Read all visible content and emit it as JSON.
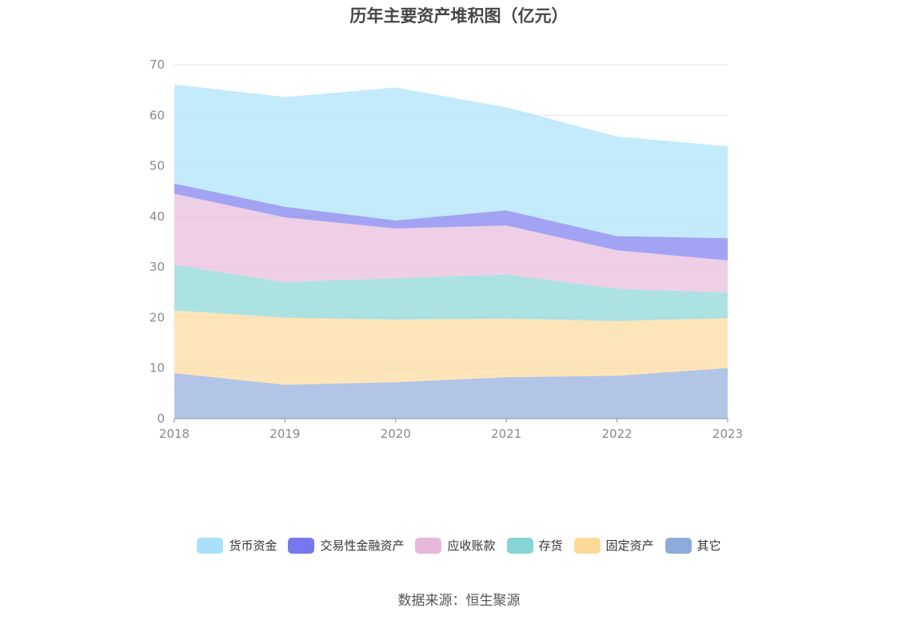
{
  "chart_data": {
    "type": "area",
    "title": "历年主要资产堆积图（亿元）",
    "stacked": true,
    "x": [
      "2018",
      "2019",
      "2020",
      "2021",
      "2022",
      "2023"
    ],
    "ylim": [
      0,
      70
    ],
    "yticks": [
      0,
      10,
      20,
      30,
      40,
      50,
      60,
      70
    ],
    "grid": true,
    "legend_position": "bottom",
    "series": [
      {
        "name": "其它",
        "color": "#8eaadb",
        "values": [
          9.0,
          6.7,
          7.2,
          8.2,
          8.5,
          10.0
        ]
      },
      {
        "name": "固定资产",
        "color": "#fdd998",
        "values": [
          12.4,
          13.3,
          12.4,
          11.6,
          10.8,
          9.9
        ]
      },
      {
        "name": "存货",
        "color": "#86d4d4",
        "values": [
          9.0,
          7.0,
          8.2,
          8.7,
          6.4,
          5.0
        ]
      },
      {
        "name": "应收账款",
        "color": "#e6b8da",
        "values": [
          14.1,
          12.8,
          9.8,
          9.7,
          7.6,
          6.4
        ]
      },
      {
        "name": "交易性金融资产",
        "color": "#7878ee",
        "values": [
          2.0,
          2.1,
          1.6,
          3.0,
          2.8,
          4.4
        ]
      },
      {
        "name": "货币资金",
        "color": "#a8e1f9",
        "values": [
          19.6,
          21.7,
          26.3,
          20.4,
          19.7,
          18.2
        ]
      }
    ],
    "legend_order": [
      "货币资金",
      "交易性金融资产",
      "应收账款",
      "存货",
      "固定资产",
      "其它"
    ]
  },
  "source": "数据来源：恒生聚源"
}
